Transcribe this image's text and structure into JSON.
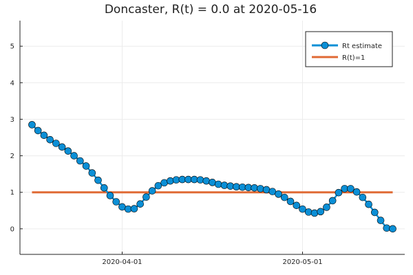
{
  "chart_data": {
    "type": "line",
    "title": "Doncaster, R(t) = 0.0 at 2020-05-16",
    "xlabel": "",
    "ylabel": "",
    "x_start": "2020-03-17",
    "x_end": "2020-05-16",
    "xlim": [
      "2020-03-15",
      "2020-05-18"
    ],
    "ylim": [
      -0.7,
      5.7
    ],
    "x_ticks": [
      {
        "date": "2020-04-01",
        "label": "2020-04-01"
      },
      {
        "date": "2020-05-01",
        "label": "2020-05-01"
      }
    ],
    "y_ticks": [
      0,
      1,
      2,
      3,
      4,
      5
    ],
    "grid": true,
    "legend_position": "top-right",
    "series": [
      {
        "name": "Rt estimate",
        "color": "#0b8fd6",
        "marker": "circle",
        "values": [
          2.85,
          2.69,
          2.56,
          2.44,
          2.34,
          2.24,
          2.13,
          2.0,
          1.86,
          1.72,
          1.53,
          1.33,
          1.12,
          0.91,
          0.74,
          0.6,
          0.54,
          0.55,
          0.68,
          0.87,
          1.04,
          1.18,
          1.26,
          1.31,
          1.34,
          1.35,
          1.35,
          1.35,
          1.34,
          1.31,
          1.27,
          1.22,
          1.19,
          1.17,
          1.15,
          1.14,
          1.13,
          1.12,
          1.1,
          1.07,
          1.02,
          0.95,
          0.86,
          0.75,
          0.64,
          0.54,
          0.46,
          0.43,
          0.47,
          0.59,
          0.77,
          0.99,
          1.1,
          1.1,
          1.01,
          0.86,
          0.67,
          0.45,
          0.23,
          0.02,
          0.0
        ]
      },
      {
        "name": "R(t)=1",
        "color": "#e06a34",
        "marker": "none",
        "values": [
          1,
          1,
          1,
          1,
          1,
          1,
          1,
          1,
          1,
          1,
          1,
          1,
          1,
          1,
          1,
          1,
          1,
          1,
          1,
          1,
          1,
          1,
          1,
          1,
          1,
          1,
          1,
          1,
          1,
          1,
          1,
          1,
          1,
          1,
          1,
          1,
          1,
          1,
          1,
          1,
          1,
          1,
          1,
          1,
          1,
          1,
          1,
          1,
          1,
          1,
          1,
          1,
          1,
          1,
          1,
          1,
          1,
          1,
          1,
          1,
          1
        ]
      }
    ]
  }
}
